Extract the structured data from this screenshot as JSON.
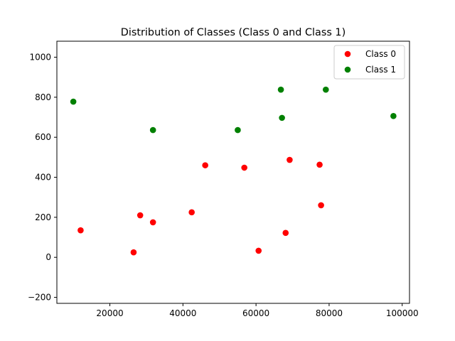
{
  "chart_data": {
    "type": "scatter",
    "title": "Distribution of Classes (Class 0 and Class 1)",
    "xlabel": "",
    "ylabel": "",
    "xlim": [
      5500,
      102000
    ],
    "ylim": [
      -230,
      1080
    ],
    "xticks": [
      20000,
      40000,
      60000,
      80000,
      100000
    ],
    "xtick_labels": [
      "20000",
      "40000",
      "60000",
      "80000",
      "100000"
    ],
    "yticks": [
      -200,
      0,
      200,
      400,
      600,
      800,
      1000
    ],
    "ytick_labels": [
      "−200",
      "0",
      "200",
      "400",
      "600",
      "800",
      "1000"
    ],
    "grid": false,
    "legend_position": "top-right",
    "series": [
      {
        "name": "Class 0",
        "color": "#ff0000",
        "points": [
          {
            "x": 12000,
            "y": 135
          },
          {
            "x": 26500,
            "y": 25
          },
          {
            "x": 28300,
            "y": 210
          },
          {
            "x": 31800,
            "y": 175
          },
          {
            "x": 42400,
            "y": 225
          },
          {
            "x": 46100,
            "y": 460
          },
          {
            "x": 56800,
            "y": 448
          },
          {
            "x": 60700,
            "y": 33
          },
          {
            "x": 68100,
            "y": 122
          },
          {
            "x": 69200,
            "y": 487
          },
          {
            "x": 77400,
            "y": 463
          },
          {
            "x": 77800,
            "y": 260
          }
        ]
      },
      {
        "name": "Class 1",
        "color": "#008000",
        "points": [
          {
            "x": 10000,
            "y": 778
          },
          {
            "x": 31800,
            "y": 636
          },
          {
            "x": 55000,
            "y": 636
          },
          {
            "x": 66800,
            "y": 838
          },
          {
            "x": 67100,
            "y": 697
          },
          {
            "x": 79100,
            "y": 838
          },
          {
            "x": 97600,
            "y": 706
          }
        ]
      }
    ]
  }
}
